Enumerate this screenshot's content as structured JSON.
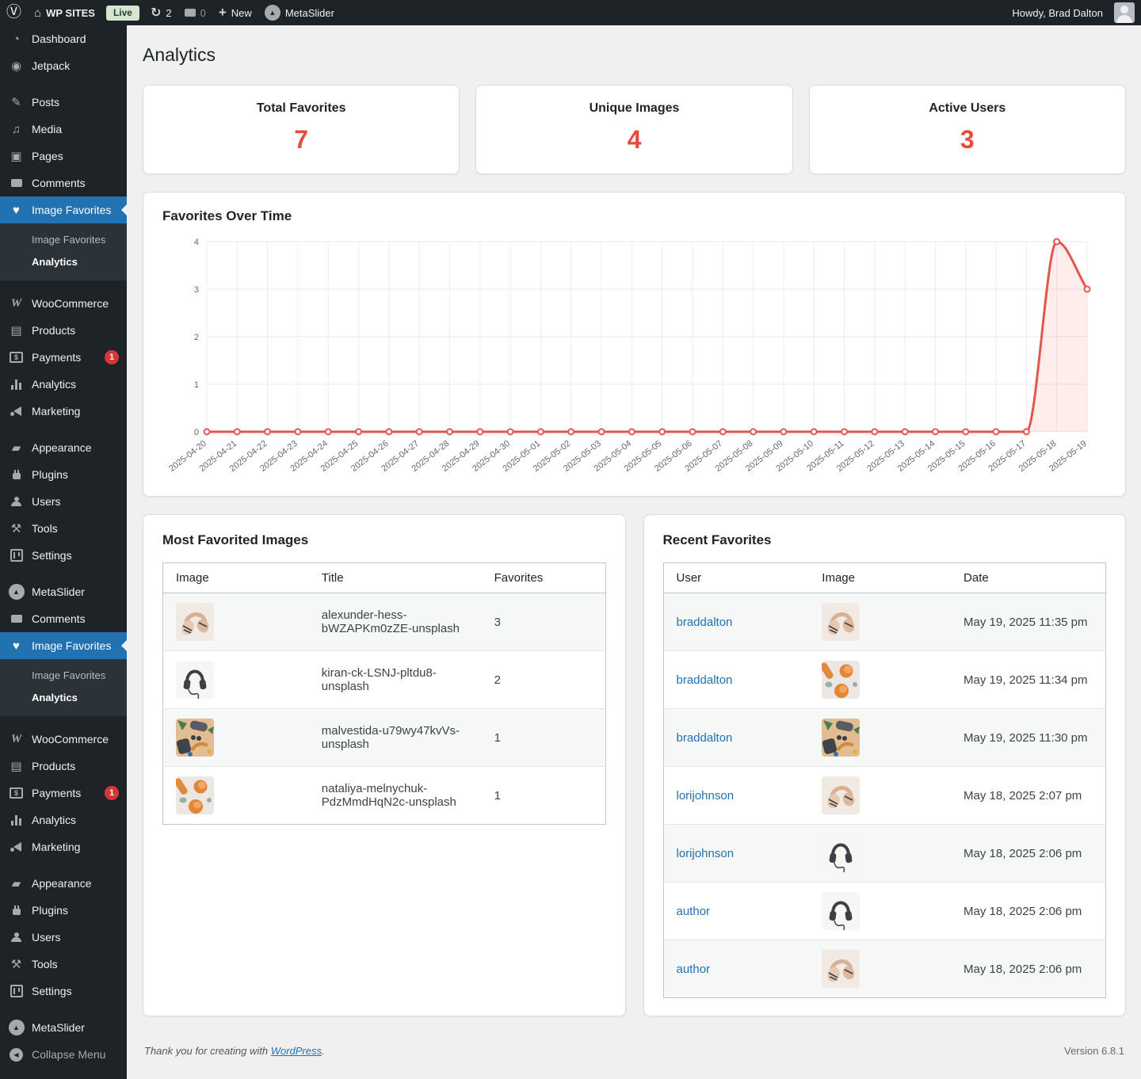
{
  "admin_bar": {
    "site_name": "WP SITES",
    "live_badge": "Live",
    "updates_count": "2",
    "comments_count": "0",
    "new_label": "New",
    "metaslider_label": "MetaSlider",
    "howdy": "Howdy, Brad Dalton"
  },
  "colors": {
    "accent": "#2271b1",
    "stat_number": "#e74c3c",
    "sidebar_selected": "#2271b1",
    "chart_line": "#e4564b",
    "chart_fill": "rgba(231,84,72,0.10)"
  },
  "sidebar": {
    "items": [
      {
        "type": "item",
        "label": "Dashboard",
        "icon": "dashboard-icon"
      },
      {
        "type": "item",
        "label": "Jetpack",
        "icon": "jetpack-icon"
      },
      {
        "type": "sep"
      },
      {
        "type": "item",
        "label": "Posts",
        "icon": "posts-icon"
      },
      {
        "type": "item",
        "label": "Media",
        "icon": "media-icon"
      },
      {
        "type": "item",
        "label": "Pages",
        "icon": "pages-icon"
      },
      {
        "type": "item",
        "label": "Comments",
        "icon": "comments-icon"
      },
      {
        "type": "item",
        "label": "Image Favorites",
        "icon": "favorites-icon",
        "current": true
      },
      {
        "type": "sub",
        "label": "Image Favorites"
      },
      {
        "type": "sub",
        "label": "Analytics",
        "current": true
      },
      {
        "type": "sep"
      },
      {
        "type": "item",
        "label": "WooCommerce",
        "icon": "woocommerce-icon"
      },
      {
        "type": "item",
        "label": "Products",
        "icon": "products-icon"
      },
      {
        "type": "item",
        "label": "Payments",
        "icon": "payments-icon",
        "badge": "1"
      },
      {
        "type": "item",
        "label": "Analytics",
        "icon": "analytics-icon"
      },
      {
        "type": "item",
        "label": "Marketing",
        "icon": "marketing-icon"
      },
      {
        "type": "sep"
      },
      {
        "type": "item",
        "label": "Appearance",
        "icon": "appearance-icon"
      },
      {
        "type": "item",
        "label": "Plugins",
        "icon": "plugins-icon"
      },
      {
        "type": "item",
        "label": "Users",
        "icon": "users-icon"
      },
      {
        "type": "item",
        "label": "Tools",
        "icon": "tools-icon"
      },
      {
        "type": "item",
        "label": "Settings",
        "icon": "settings-icon"
      },
      {
        "type": "sep"
      },
      {
        "type": "item",
        "label": "MetaSlider",
        "icon": "metaslider-icon"
      },
      {
        "type": "item",
        "label": "Comments",
        "icon": "comments-icon"
      },
      {
        "type": "item",
        "label": "Image Favorites",
        "icon": "favorites-icon",
        "current": true
      },
      {
        "type": "sub",
        "label": "Image Favorites"
      },
      {
        "type": "sub",
        "label": "Analytics",
        "current": true
      },
      {
        "type": "sep"
      },
      {
        "type": "item",
        "label": "WooCommerce",
        "icon": "woocommerce-icon"
      },
      {
        "type": "item",
        "label": "Products",
        "icon": "products-icon"
      },
      {
        "type": "item",
        "label": "Payments",
        "icon": "payments-icon",
        "badge": "1"
      },
      {
        "type": "item",
        "label": "Analytics",
        "icon": "analytics-icon"
      },
      {
        "type": "item",
        "label": "Marketing",
        "icon": "marketing-icon"
      },
      {
        "type": "sep"
      },
      {
        "type": "item",
        "label": "Appearance",
        "icon": "appearance-icon"
      },
      {
        "type": "item",
        "label": "Plugins",
        "icon": "plugins-icon"
      },
      {
        "type": "item",
        "label": "Users",
        "icon": "users-icon"
      },
      {
        "type": "item",
        "label": "Tools",
        "icon": "tools-icon"
      },
      {
        "type": "item",
        "label": "Settings",
        "icon": "settings-icon"
      },
      {
        "type": "sep"
      },
      {
        "type": "item",
        "label": "MetaSlider",
        "icon": "metaslider-icon"
      },
      {
        "type": "item",
        "label": "Collapse Menu",
        "icon": "collapse-icon",
        "muted": true
      }
    ]
  },
  "page": {
    "title": "Analytics",
    "stats": [
      {
        "label": "Total Favorites",
        "value": "7"
      },
      {
        "label": "Unique Images",
        "value": "4"
      },
      {
        "label": "Active Users",
        "value": "3"
      }
    ],
    "most_favorited": {
      "title": "Most Favorited Images",
      "columns": [
        "Image",
        "Title",
        "Favorites"
      ],
      "rows": [
        {
          "thumb": "headphones-tan",
          "title": "alexunder-hess-bWZAPKm0zZE-unsplash",
          "favorites": "3"
        },
        {
          "thumb": "headphones-black",
          "title": "kiran-ck-LSNJ-pltdu8-unsplash",
          "favorites": "2"
        },
        {
          "thumb": "flatlay",
          "title": "malvestida-u79wy47kvVs-unsplash",
          "favorites": "1"
        },
        {
          "thumb": "oranges",
          "title": "nataliya-melnychuk-PdzMmdHqN2c-unsplash",
          "favorites": "1"
        }
      ]
    },
    "recent_favorites": {
      "title": "Recent Favorites",
      "columns": [
        "User",
        "Image",
        "Date"
      ],
      "rows": [
        {
          "user": "braddalton",
          "thumb": "headphones-tan",
          "date": "May 19, 2025 11:35 pm"
        },
        {
          "user": "braddalton",
          "thumb": "oranges",
          "date": "May 19, 2025 11:34 pm"
        },
        {
          "user": "braddalton",
          "thumb": "flatlay",
          "date": "May 19, 2025 11:30 pm"
        },
        {
          "user": "lorijohnson",
          "thumb": "headphones-tan",
          "date": "May 18, 2025 2:07 pm"
        },
        {
          "user": "lorijohnson",
          "thumb": "headphones-black",
          "date": "May 18, 2025 2:06 pm"
        },
        {
          "user": "author",
          "thumb": "headphones-black",
          "date": "May 18, 2025 2:06 pm"
        },
        {
          "user": "author",
          "thumb": "headphones-tan",
          "date": "May 18, 2025 2:06 pm"
        }
      ]
    },
    "footer": {
      "thanks_prefix": "Thank you for creating with ",
      "link_text": "WordPress",
      "thanks_suffix": ".",
      "version": "Version 6.8.1"
    }
  },
  "chart_data": {
    "type": "line",
    "title": "Favorites Over Time",
    "x": [
      "2025-04-20",
      "2025-04-21",
      "2025-04-22",
      "2025-04-23",
      "2025-04-24",
      "2025-04-25",
      "2025-04-26",
      "2025-04-27",
      "2025-04-28",
      "2025-04-29",
      "2025-04-30",
      "2025-05-01",
      "2025-05-02",
      "2025-05-03",
      "2025-05-04",
      "2025-05-05",
      "2025-05-06",
      "2025-05-07",
      "2025-05-08",
      "2025-05-09",
      "2025-05-10",
      "2025-05-11",
      "2025-05-12",
      "2025-05-13",
      "2025-05-14",
      "2025-05-15",
      "2025-05-16",
      "2025-05-17",
      "2025-05-18",
      "2025-05-19"
    ],
    "series": [
      {
        "name": "Favorites",
        "values": [
          0,
          0,
          0,
          0,
          0,
          0,
          0,
          0,
          0,
          0,
          0,
          0,
          0,
          0,
          0,
          0,
          0,
          0,
          0,
          0,
          0,
          0,
          0,
          0,
          0,
          0,
          0,
          0,
          4,
          3
        ]
      }
    ],
    "xlabel": "",
    "ylabel": "",
    "ylim": [
      0,
      4
    ],
    "yticks": [
      0,
      1,
      2,
      3,
      4
    ],
    "grid": true,
    "legend": "none"
  }
}
